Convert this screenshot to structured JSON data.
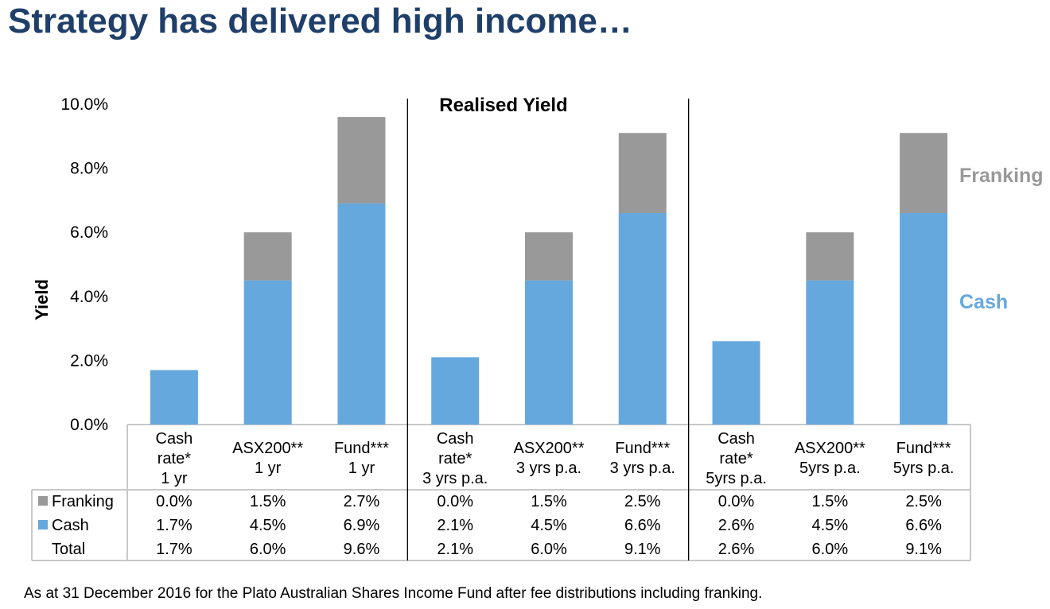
{
  "page": {
    "title": "Strategy has delivered high income…",
    "footnote": "As at 31 December 2016 for the Plato Australian Shares Income Fund after fee distributions including franking."
  },
  "colors": {
    "cash": "#65a8de",
    "franking": "#999999",
    "title": "#1f3f6a",
    "grid": "#c8c8c8"
  },
  "chart_data": {
    "type": "bar",
    "stacked": true,
    "title": "Realised Yield",
    "ylabel": "Yield",
    "ylim": [
      0,
      10
    ],
    "yticks": [
      "0.0%",
      "2.0%",
      "4.0%",
      "6.0%",
      "8.0%",
      "10.0%"
    ],
    "categories": [
      [
        "Cash",
        "rate*",
        "1 yr"
      ],
      [
        "ASX200**",
        "1 yr"
      ],
      [
        "Fund***",
        "1 yr"
      ],
      [
        "Cash",
        "rate*",
        "3 yrs p.a."
      ],
      [
        "ASX200**",
        "3 yrs p.a."
      ],
      [
        "Fund***",
        "3 yrs p.a."
      ],
      [
        "Cash",
        "rate*",
        "5yrs p.a."
      ],
      [
        "ASX200**",
        "5yrs p.a."
      ],
      [
        "Fund***",
        "5yrs p.a."
      ]
    ],
    "series": [
      {
        "name": "Cash",
        "values": [
          1.7,
          4.5,
          6.9,
          2.1,
          4.5,
          6.6,
          2.6,
          4.5,
          6.6
        ]
      },
      {
        "name": "Franking",
        "values": [
          0.0,
          1.5,
          2.7,
          0.0,
          1.5,
          2.5,
          0.0,
          1.5,
          2.5
        ]
      }
    ],
    "legend_labels": {
      "franking": "Franking",
      "cash": "Cash"
    },
    "table": {
      "rows": [
        {
          "label": "Franking",
          "values": [
            "0.0%",
            "1.5%",
            "2.7%",
            "0.0%",
            "1.5%",
            "2.5%",
            "0.0%",
            "1.5%",
            "2.5%"
          ]
        },
        {
          "label": "Cash",
          "values": [
            "1.7%",
            "4.5%",
            "6.9%",
            "2.1%",
            "4.5%",
            "6.6%",
            "2.6%",
            "4.5%",
            "6.6%"
          ]
        },
        {
          "label": "Total",
          "values": [
            "1.7%",
            "6.0%",
            "9.6%",
            "2.1%",
            "6.0%",
            "9.1%",
            "2.6%",
            "6.0%",
            "9.1%"
          ]
        }
      ]
    }
  }
}
